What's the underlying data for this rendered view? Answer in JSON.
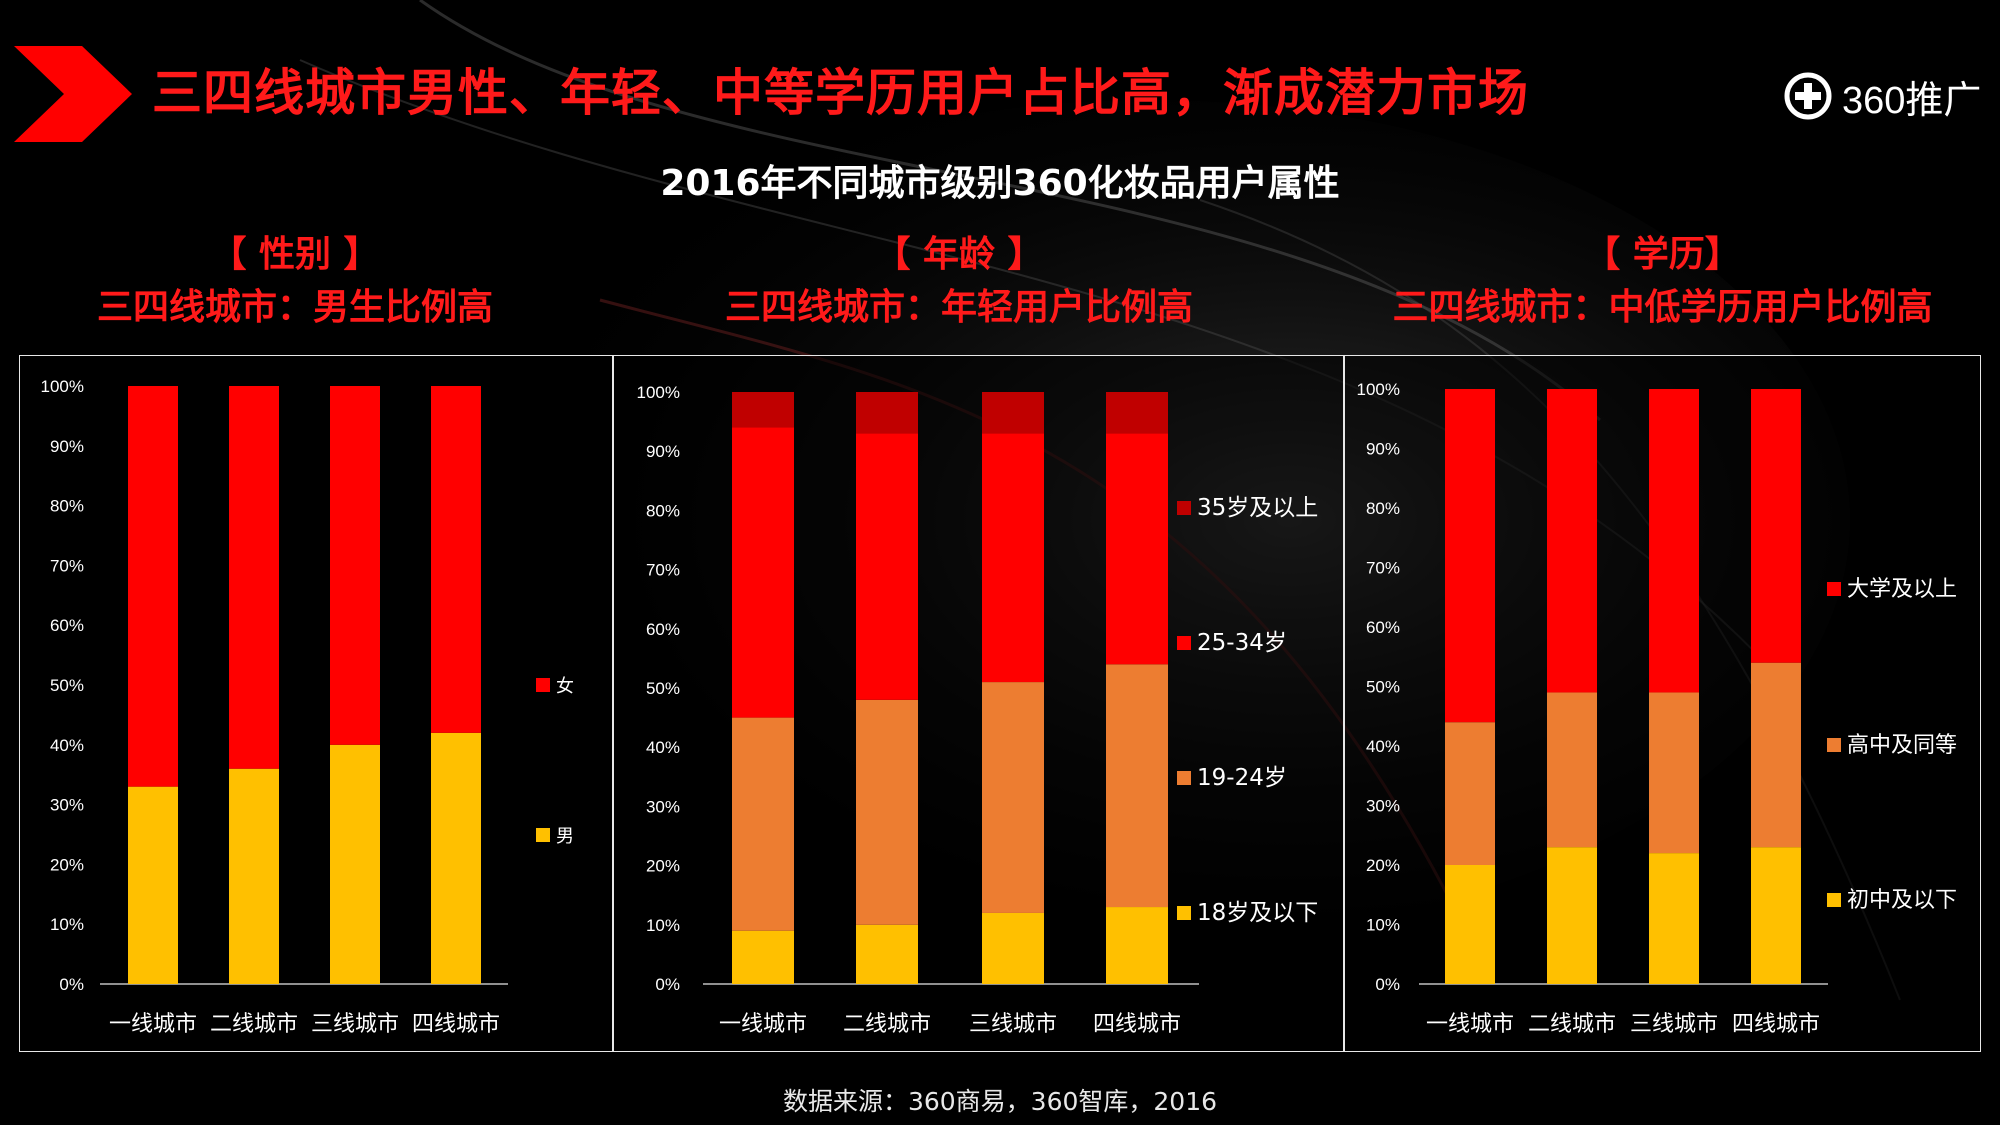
{
  "header": {
    "title": "三四线城市男性、年轻、中等学历用户占比高，渐成潜力市场",
    "logo_text": "360推广"
  },
  "subtitle": "2016年不同城市级别360化妆品用户属性",
  "sections": [
    {
      "bracket_label": "【 性别 】",
      "headline": "三四线城市：男生比例高"
    },
    {
      "bracket_label": "【 年龄 】",
      "headline": "三四线城市：年轻用户比例高"
    },
    {
      "bracket_label": "【 学历】",
      "headline": "三四线城市：中低学历用户比例高"
    }
  ],
  "source": "数据来源：360商易，360智库，2016",
  "colors": {
    "title_red": "#ff1a1a",
    "yellow": "#ffc000",
    "orange": "#ed7d31",
    "red": "#ff0000",
    "dark_red": "#c00000"
  },
  "chart_data": [
    {
      "type": "bar",
      "stacked": true,
      "title": "性别",
      "categories": [
        "一线城市",
        "二线城市",
        "三线城市",
        "四线城市"
      ],
      "y_ticks": [
        "0%",
        "10%",
        "20%",
        "30%",
        "40%",
        "50%",
        "60%",
        "70%",
        "80%",
        "90%",
        "100%"
      ],
      "ylim": [
        0,
        100
      ],
      "series": [
        {
          "name": "男",
          "color": "#ffc000",
          "values": [
            33,
            36,
            40,
            42
          ]
        },
        {
          "name": "女",
          "color": "#ff0000",
          "values": [
            67,
            64,
            60,
            58
          ]
        }
      ],
      "legend_order": [
        "女",
        "男"
      ],
      "legend_position": "right"
    },
    {
      "type": "bar",
      "stacked": true,
      "title": "年龄",
      "categories": [
        "一线城市",
        "二线城市",
        "三线城市",
        "四线城市"
      ],
      "y_ticks": [
        "0%",
        "10%",
        "20%",
        "30%",
        "40%",
        "50%",
        "60%",
        "70%",
        "80%",
        "90%",
        "100%"
      ],
      "ylim": [
        0,
        100
      ],
      "series": [
        {
          "name": "18岁及以下",
          "color": "#ffc000",
          "values": [
            9,
            10,
            12,
            13
          ]
        },
        {
          "name": "19-24岁",
          "color": "#ed7d31",
          "values": [
            36,
            38,
            39,
            41
          ]
        },
        {
          "name": "25-34岁",
          "color": "#ff0000",
          "values": [
            49,
            45,
            42,
            39
          ]
        },
        {
          "name": "35岁及以上",
          "color": "#c00000",
          "values": [
            6,
            7,
            7,
            7
          ]
        }
      ],
      "legend_order": [
        "35岁及以上",
        "25-34岁",
        "19-24岁",
        "18岁及以下"
      ],
      "legend_position": "right"
    },
    {
      "type": "bar",
      "stacked": true,
      "title": "学历",
      "categories": [
        "一线城市",
        "二线城市",
        "三线城市",
        "四线城市"
      ],
      "y_ticks": [
        "0%",
        "10%",
        "20%",
        "30%",
        "40%",
        "50%",
        "60%",
        "70%",
        "80%",
        "90%",
        "100%"
      ],
      "ylim": [
        0,
        100
      ],
      "series": [
        {
          "name": "初中及以下",
          "color": "#ffc000",
          "values": [
            20,
            23,
            22,
            23
          ]
        },
        {
          "name": "高中及同等",
          "color": "#ed7d31",
          "values": [
            24,
            26,
            27,
            31
          ]
        },
        {
          "name": "大学及以上",
          "color": "#ff0000",
          "values": [
            56,
            51,
            51,
            46
          ]
        }
      ],
      "legend_order": [
        "大学及以上",
        "高中及同等",
        "初中及以下"
      ],
      "legend_position": "right"
    }
  ]
}
